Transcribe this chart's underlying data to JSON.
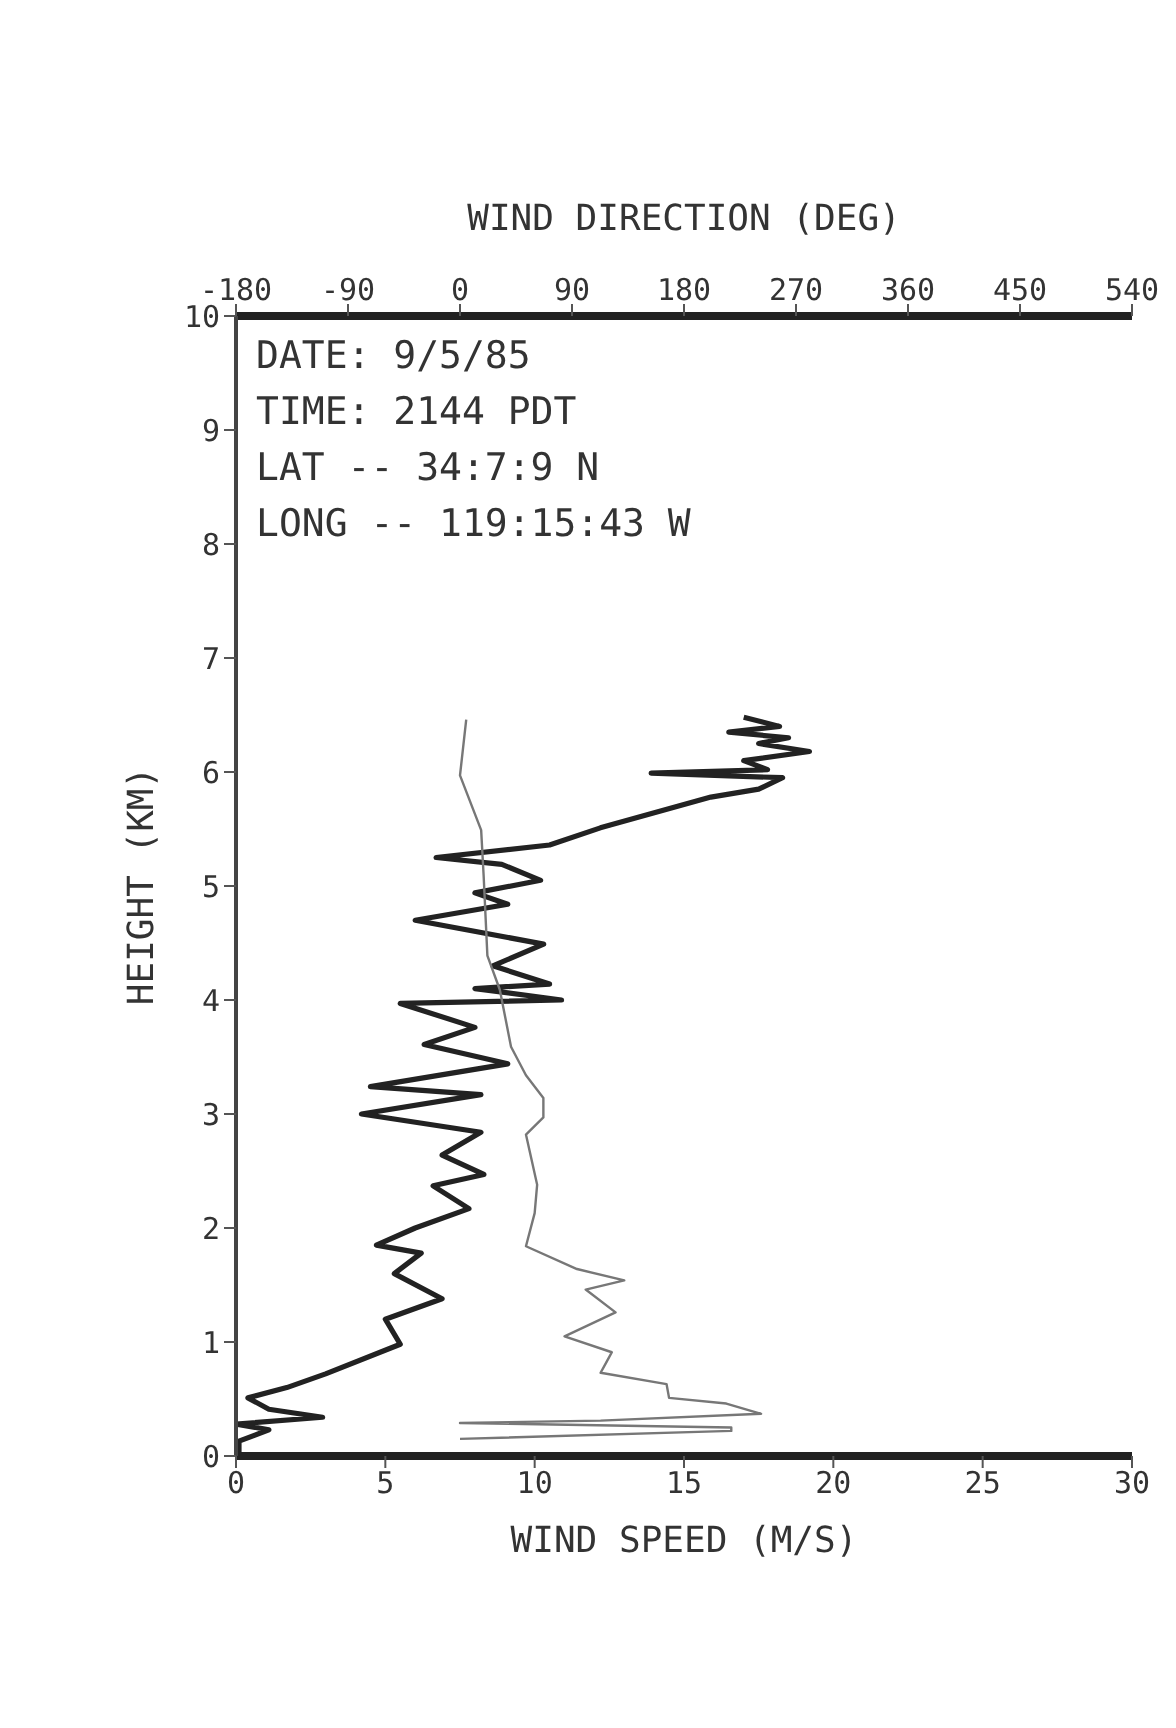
{
  "chart_data": {
    "type": "line",
    "xlabel": "WIND SPEED (M/S)",
    "x2label": "WIND DIRECTION (DEG)",
    "ylabel": "HEIGHT (KM)",
    "xlim": [
      0,
      30
    ],
    "xticks": [
      0,
      5,
      10,
      15,
      20,
      25,
      30
    ],
    "x2lim": [
      -180,
      540
    ],
    "x2ticks": [
      -180,
      -90,
      0,
      90,
      180,
      270,
      360,
      450,
      540
    ],
    "ylim": [
      0,
      10
    ],
    "yticks": [
      0,
      1,
      2,
      3,
      4,
      5,
      6,
      7,
      8,
      9,
      10
    ],
    "annotations": [
      "DATE: 9/5/85",
      "TIME: 2144 PDT",
      "LAT -- 34:7:9 N",
      "LONG -- 119:15:43 W"
    ],
    "series": [
      {
        "color": "#222222",
        "x": [
          0.1,
          0.1,
          1.1,
          0.0,
          2.9,
          1.1,
          0.4,
          1.7,
          3.0,
          5.5,
          5.0,
          6.9,
          5.3,
          6.2,
          4.7,
          6.0,
          7.8,
          6.6,
          8.3,
          6.9,
          8.2,
          4.2,
          8.2,
          4.5,
          9.1,
          6.3,
          8.0,
          5.5,
          10.9,
          8.0,
          10.5,
          8.6,
          10.3,
          6.0,
          9.1,
          8.0,
          10.2,
          8.9,
          6.7,
          10.5,
          12.2,
          15.9,
          17.5,
          18.3,
          13.9,
          17.8,
          17.0,
          19.2,
          17.5,
          18.5,
          16.5,
          18.2,
          17.0
        ],
        "values": [
          0.0,
          0.13,
          0.23,
          0.28,
          0.34,
          0.41,
          0.51,
          0.6,
          0.72,
          0.98,
          1.2,
          1.38,
          1.6,
          1.78,
          1.85,
          2.0,
          2.17,
          2.37,
          2.47,
          2.64,
          2.84,
          3.0,
          3.17,
          3.24,
          3.44,
          3.61,
          3.76,
          3.97,
          4.0,
          4.1,
          4.14,
          4.3,
          4.49,
          4.7,
          4.84,
          4.94,
          5.05,
          5.19,
          5.25,
          5.36,
          5.51,
          5.78,
          5.85,
          5.95,
          5.99,
          6.02,
          6.1,
          6.18,
          6.25,
          6.3,
          6.35,
          6.4,
          6.48
        ]
      },
      {
        "axis": "x2",
        "color": "#777777",
        "x": [
          0,
          218,
          218,
          0,
          113,
          242,
          214,
          168,
          166,
          113,
          118,
          122,
          84,
          125,
          101,
          132,
          94,
          53,
          60,
          62,
          53,
          67,
          67,
          53,
          41,
          32,
          22,
          19,
          17,
          0,
          5
        ],
        "values": [
          0.15,
          0.22,
          0.25,
          0.29,
          0.31,
          0.37,
          0.46,
          0.51,
          0.63,
          0.73,
          0.83,
          0.91,
          1.05,
          1.26,
          1.46,
          1.54,
          1.64,
          1.84,
          2.13,
          2.38,
          2.82,
          2.97,
          3.14,
          3.34,
          3.59,
          4.09,
          4.39,
          5.09,
          5.49,
          5.97,
          6.46
        ]
      }
    ]
  }
}
